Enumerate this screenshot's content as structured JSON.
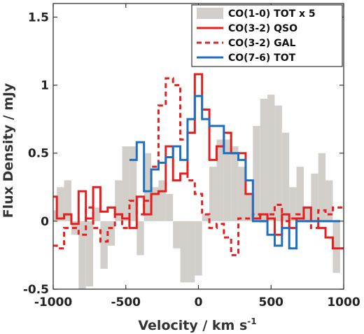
{
  "chart_data": {
    "type": "line",
    "xlabel": "Velocity / km s",
    "xlabel_sup": "-1",
    "ylabel": "Flux Density / mJy",
    "xlim": [
      -1000,
      1000
    ],
    "ylim": [
      -0.5,
      1.6
    ],
    "xticks": [
      -1000,
      -500,
      0,
      500,
      1000
    ],
    "xtick_labels": [
      "-1000",
      "-500",
      "0",
      "500",
      "1000"
    ],
    "yticks": [
      -0.5,
      0,
      0.5,
      1,
      1.5
    ],
    "ytick_labels": [
      "-0.5",
      "0",
      "0.5",
      "1",
      "1.5"
    ],
    "grid": false,
    "legend_position": "top-right",
    "series": [
      {
        "name": "CO(1-0) TOT x 5",
        "style": "bar",
        "color": "#d2cec9",
        "x": [
          -1000,
          -950,
          -900,
          -850,
          -800,
          -750,
          -700,
          -650,
          -600,
          -550,
          -500,
          -450,
          -400,
          -350,
          -300,
          -250,
          -200,
          -150,
          -100,
          -50,
          0,
          50,
          100,
          150,
          200,
          250,
          300,
          350,
          400,
          450,
          500,
          550,
          600,
          650,
          700,
          750,
          800,
          850,
          900,
          950,
          1000
        ],
        "values": [
          0.08,
          0.25,
          0.3,
          -0.1,
          -0.5,
          -0.48,
          0.1,
          -0.35,
          -0.18,
          0.3,
          0.55,
          0.55,
          -0.25,
          0.5,
          0.25,
          0.3,
          0.2,
          -0.2,
          -0.45,
          -0.45,
          -0.4,
          0.05,
          0.4,
          0.6,
          0.6,
          0.55,
          0.4,
          0.2,
          0.7,
          0.9,
          0.93,
          0.85,
          0.65,
          0.25,
          0.4,
          0.1,
          0.35,
          0.5,
          0.3,
          -0.38,
          0.0
        ]
      },
      {
        "name": "CO(3-2) QSO",
        "style": "solid",
        "color": "#e41f1f",
        "x": [
          -1000,
          -950,
          -900,
          -850,
          -800,
          -750,
          -700,
          -650,
          -600,
          -550,
          -500,
          -450,
          -400,
          -350,
          -300,
          -250,
          -200,
          -150,
          -100,
          -50,
          0,
          50,
          100,
          150,
          200,
          250,
          300,
          350,
          400,
          450,
          500,
          550,
          600,
          650,
          700,
          750,
          800,
          850,
          900,
          950,
          1000
        ],
        "values": [
          0.18,
          0.02,
          0.05,
          -0.02,
          0.22,
          0.02,
          0.25,
          0.07,
          0.1,
          0.05,
          0.02,
          -0.05,
          0.18,
          0.05,
          0.2,
          0.22,
          0.55,
          0.3,
          0.35,
          0.65,
          1.08,
          0.82,
          0.45,
          0.55,
          0.65,
          0.5,
          0.5,
          0.2,
          0.02,
          0.05,
          0.02,
          -0.1,
          0.05,
          -0.05,
          0.02,
          0.1,
          0.0,
          -0.05,
          -0.12,
          -0.2,
          -0.2
        ]
      },
      {
        "name": "CO(3-2) GAL",
        "style": "dashed",
        "color": "#e41f1f",
        "x": [
          -1000,
          -950,
          -900,
          -850,
          -800,
          -750,
          -700,
          -650,
          -600,
          -550,
          -500,
          -450,
          -400,
          -350,
          -300,
          -250,
          -200,
          -150,
          -100,
          -50,
          0,
          50,
          100,
          150,
          200,
          250,
          300,
          350,
          400,
          450,
          500,
          550,
          600,
          650,
          700,
          750,
          800,
          850,
          900,
          950,
          1000
        ],
        "values": [
          -0.18,
          -0.2,
          -0.05,
          -0.05,
          -0.1,
          0.1,
          -0.05,
          -0.15,
          -0.05,
          0.05,
          -0.05,
          0.15,
          0.05,
          0.15,
          0.4,
          0.85,
          1.05,
          1.0,
          0.6,
          0.3,
          0.2,
          0.05,
          -0.05,
          -0.02,
          -0.12,
          -0.25,
          0.02,
          0.02,
          0.05,
          0.0,
          0.05,
          0.12,
          0.0,
          0.02,
          0.05,
          0.0,
          -0.05,
          0.08,
          0.05,
          0.1,
          0.1
        ]
      },
      {
        "name": "CO(7-6) TOT",
        "style": "solid",
        "color": "#1f6fbf",
        "x": [
          -450,
          -400,
          -350,
          -300,
          -250,
          -200,
          -150,
          -100,
          -50,
          0,
          50,
          100,
          150,
          200,
          250,
          300,
          350,
          400,
          450,
          500,
          550,
          600,
          650,
          700,
          750,
          800,
          850,
          900,
          950
        ],
        "values": [
          0.45,
          0.58,
          0.22,
          0.38,
          0.43,
          0.47,
          0.55,
          0.45,
          0.75,
          0.92,
          0.75,
          0.7,
          0.7,
          0.5,
          0.5,
          0.45,
          0.3,
          0.0,
          0.0,
          -0.1,
          -0.18,
          -0.05,
          -0.2,
          0.0,
          0.0,
          0.0,
          0.0,
          0.0,
          0.0
        ]
      }
    ]
  }
}
